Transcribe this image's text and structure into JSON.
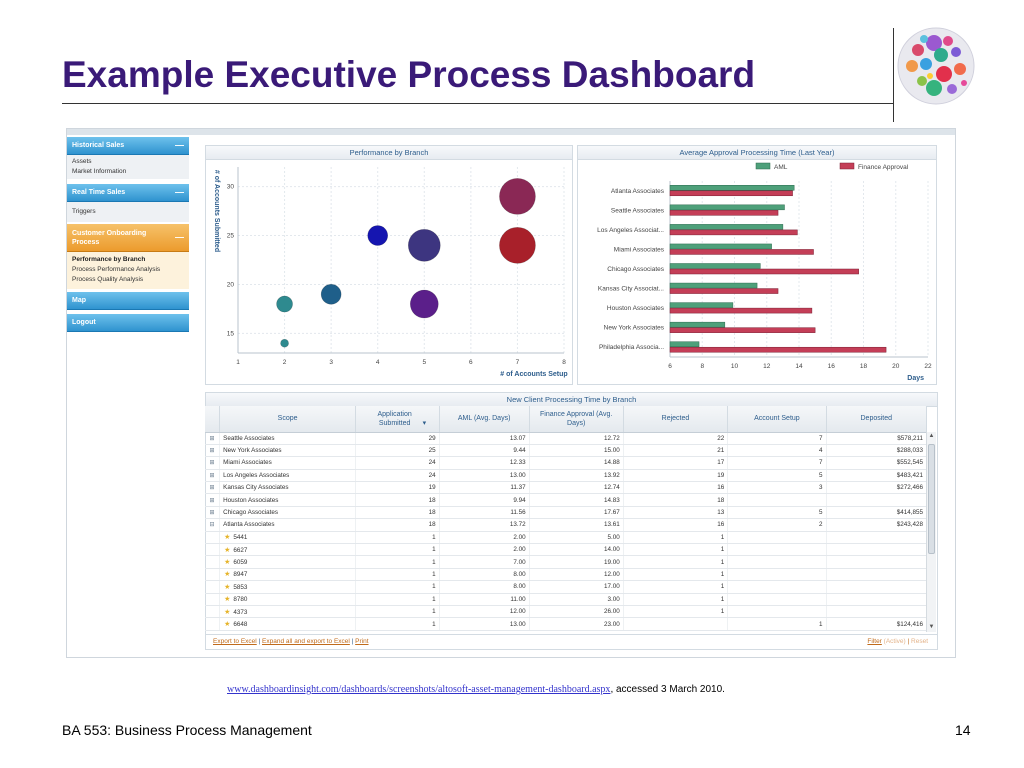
{
  "slide": {
    "title": "Example Executive Process Dashboard",
    "footer_left": "BA 553: Business Process Management",
    "page_number": "14",
    "source_url": "www.dashboardinsight.com/dashboards/screenshots/altosoft-asset-management-dashboard.aspx",
    "source_suffix": ", accessed 3 March 2010."
  },
  "sidebar": {
    "sections": [
      {
        "label": "Historical Sales",
        "items": [
          "Assets",
          "Market Information"
        ]
      },
      {
        "label": "Real Time Sales",
        "items": [
          "Triggers"
        ]
      },
      {
        "label": "Customer Onboarding Process",
        "items": [
          "Performance by Branch",
          "Process Performance Analysis",
          "Process Quality Analysis"
        ]
      },
      {
        "label": "Map",
        "items": []
      },
      {
        "label": "Logout",
        "items": []
      }
    ]
  },
  "chart_data": [
    {
      "type": "scatter",
      "title": "Performance by Branch",
      "xlabel": "# of Accounts Setup",
      "ylabel": "# of Accounts Submitted",
      "xlim": [
        1,
        8
      ],
      "ylim": [
        13,
        32
      ],
      "xticks": [
        1,
        2,
        3,
        4,
        5,
        6,
        7,
        8
      ],
      "yticks": [
        15,
        20,
        25,
        30
      ],
      "points": [
        {
          "x": 2,
          "y": 14,
          "size": 1,
          "color": "#2e8a8f"
        },
        {
          "x": 2,
          "y": 18,
          "size": 3,
          "color": "#2e8a8f"
        },
        {
          "x": 3,
          "y": 19,
          "size": 4,
          "color": "#1f5f8a"
        },
        {
          "x": 4,
          "y": 25,
          "size": 4,
          "color": "#1515b0"
        },
        {
          "x": 5,
          "y": 18,
          "size": 6,
          "color": "#5b1f8a"
        },
        {
          "x": 5,
          "y": 24,
          "size": 7,
          "color": "#3d3580"
        },
        {
          "x": 7,
          "y": 24,
          "size": 8,
          "color": "#a8202a"
        },
        {
          "x": 7,
          "y": 29,
          "size": 8,
          "color": "#8a2855"
        }
      ]
    },
    {
      "type": "bar",
      "orientation": "horizontal",
      "title": "Average Approval Processing Time (Last Year)",
      "xlabel": "Days",
      "xlim": [
        6,
        22
      ],
      "xticks": [
        6,
        8,
        10,
        12,
        14,
        16,
        18,
        20,
        22
      ],
      "categories": [
        "Atlanta Associates",
        "Seattle Associates",
        "Los Angeles Associat...",
        "Miami Associates",
        "Chicago Associates",
        "Kansas City Associat...",
        "Houston Associates",
        "New York Associates",
        "Philadelphia Associa..."
      ],
      "series": [
        {
          "name": "AML",
          "color": "#4ea07a",
          "values": [
            13.7,
            13.1,
            13.0,
            12.3,
            11.6,
            11.4,
            9.9,
            9.4,
            7.8
          ]
        },
        {
          "name": "Finance Approval",
          "color": "#c43e57",
          "values": [
            13.6,
            12.7,
            13.9,
            14.9,
            17.7,
            12.7,
            14.8,
            15.0,
            19.4
          ]
        }
      ]
    }
  ],
  "table": {
    "title": "New Client Processing Time by Branch",
    "columns": [
      "Scope",
      "Application Submitted",
      "AML (Avg. Days)",
      "Finance Approval (Avg. Days)",
      "Rejected",
      "Account Setup",
      "Deposited"
    ],
    "rows": [
      {
        "type": "parent",
        "exp": "⊞",
        "scope": "Seattle Associates",
        "submitted": "29",
        "aml": "13.07",
        "finance": "12.72",
        "rejected": "22",
        "setup": "7",
        "deposited": "$578,211"
      },
      {
        "type": "parent",
        "exp": "⊞",
        "scope": "New York Associates",
        "submitted": "25",
        "aml": "9.44",
        "finance": "15.00",
        "rejected": "21",
        "setup": "4",
        "deposited": "$288,033"
      },
      {
        "type": "parent",
        "exp": "⊞",
        "scope": "Miami Associates",
        "submitted": "24",
        "aml": "12.33",
        "finance": "14.88",
        "rejected": "17",
        "setup": "7",
        "deposited": "$552,545"
      },
      {
        "type": "parent",
        "exp": "⊞",
        "scope": "Los Angeles Associates",
        "submitted": "24",
        "aml": "13.00",
        "finance": "13.92",
        "rejected": "19",
        "setup": "5",
        "deposited": "$483,421"
      },
      {
        "type": "parent",
        "exp": "⊞",
        "scope": "Kansas City Associates",
        "submitted": "19",
        "aml": "11.37",
        "finance": "12.74",
        "rejected": "16",
        "setup": "3",
        "deposited": "$272,466"
      },
      {
        "type": "parent",
        "exp": "⊞",
        "scope": "Houston Associates",
        "submitted": "18",
        "aml": "9.94",
        "finance": "14.83",
        "rejected": "18",
        "setup": "",
        "deposited": ""
      },
      {
        "type": "parent",
        "exp": "⊞",
        "scope": "Chicago Associates",
        "submitted": "18",
        "aml": "11.56",
        "finance": "17.67",
        "rejected": "13",
        "setup": "5",
        "deposited": "$414,855"
      },
      {
        "type": "parent",
        "exp": "⊟",
        "scope": "Atlanta Associates",
        "submitted": "18",
        "aml": "13.72",
        "finance": "13.61",
        "rejected": "16",
        "setup": "2",
        "deposited": "$243,428"
      },
      {
        "type": "child",
        "exp": "",
        "scope": "5441",
        "submitted": "1",
        "aml": "2.00",
        "finance": "5.00",
        "rejected": "1",
        "setup": "",
        "deposited": ""
      },
      {
        "type": "child",
        "exp": "",
        "scope": "6627",
        "submitted": "1",
        "aml": "2.00",
        "finance": "14.00",
        "rejected": "1",
        "setup": "",
        "deposited": ""
      },
      {
        "type": "child",
        "exp": "",
        "scope": "6059",
        "submitted": "1",
        "aml": "7.00",
        "finance": "19.00",
        "rejected": "1",
        "setup": "",
        "deposited": ""
      },
      {
        "type": "child",
        "exp": "",
        "scope": "8947",
        "submitted": "1",
        "aml": "8.00",
        "finance": "12.00",
        "rejected": "1",
        "setup": "",
        "deposited": ""
      },
      {
        "type": "child",
        "exp": "",
        "scope": "5853",
        "submitted": "1",
        "aml": "8.00",
        "finance": "17.00",
        "rejected": "1",
        "setup": "",
        "deposited": ""
      },
      {
        "type": "child",
        "exp": "",
        "scope": "8780",
        "submitted": "1",
        "aml": "11.00",
        "finance": "3.00",
        "rejected": "1",
        "setup": "",
        "deposited": ""
      },
      {
        "type": "child",
        "exp": "",
        "scope": "4373",
        "submitted": "1",
        "aml": "12.00",
        "finance": "26.00",
        "rejected": "1",
        "setup": "",
        "deposited": ""
      },
      {
        "type": "child",
        "exp": "",
        "scope": "6648",
        "submitted": "1",
        "aml": "13.00",
        "finance": "23.00",
        "rejected": "",
        "setup": "1",
        "deposited": "$124,416"
      }
    ],
    "footer": {
      "export_excel": "Export to Excel",
      "expand_export": "Expand all and export to Excel",
      "print": "Print",
      "filter": "Filter",
      "active": "(Active)",
      "reset": "Reset"
    }
  }
}
